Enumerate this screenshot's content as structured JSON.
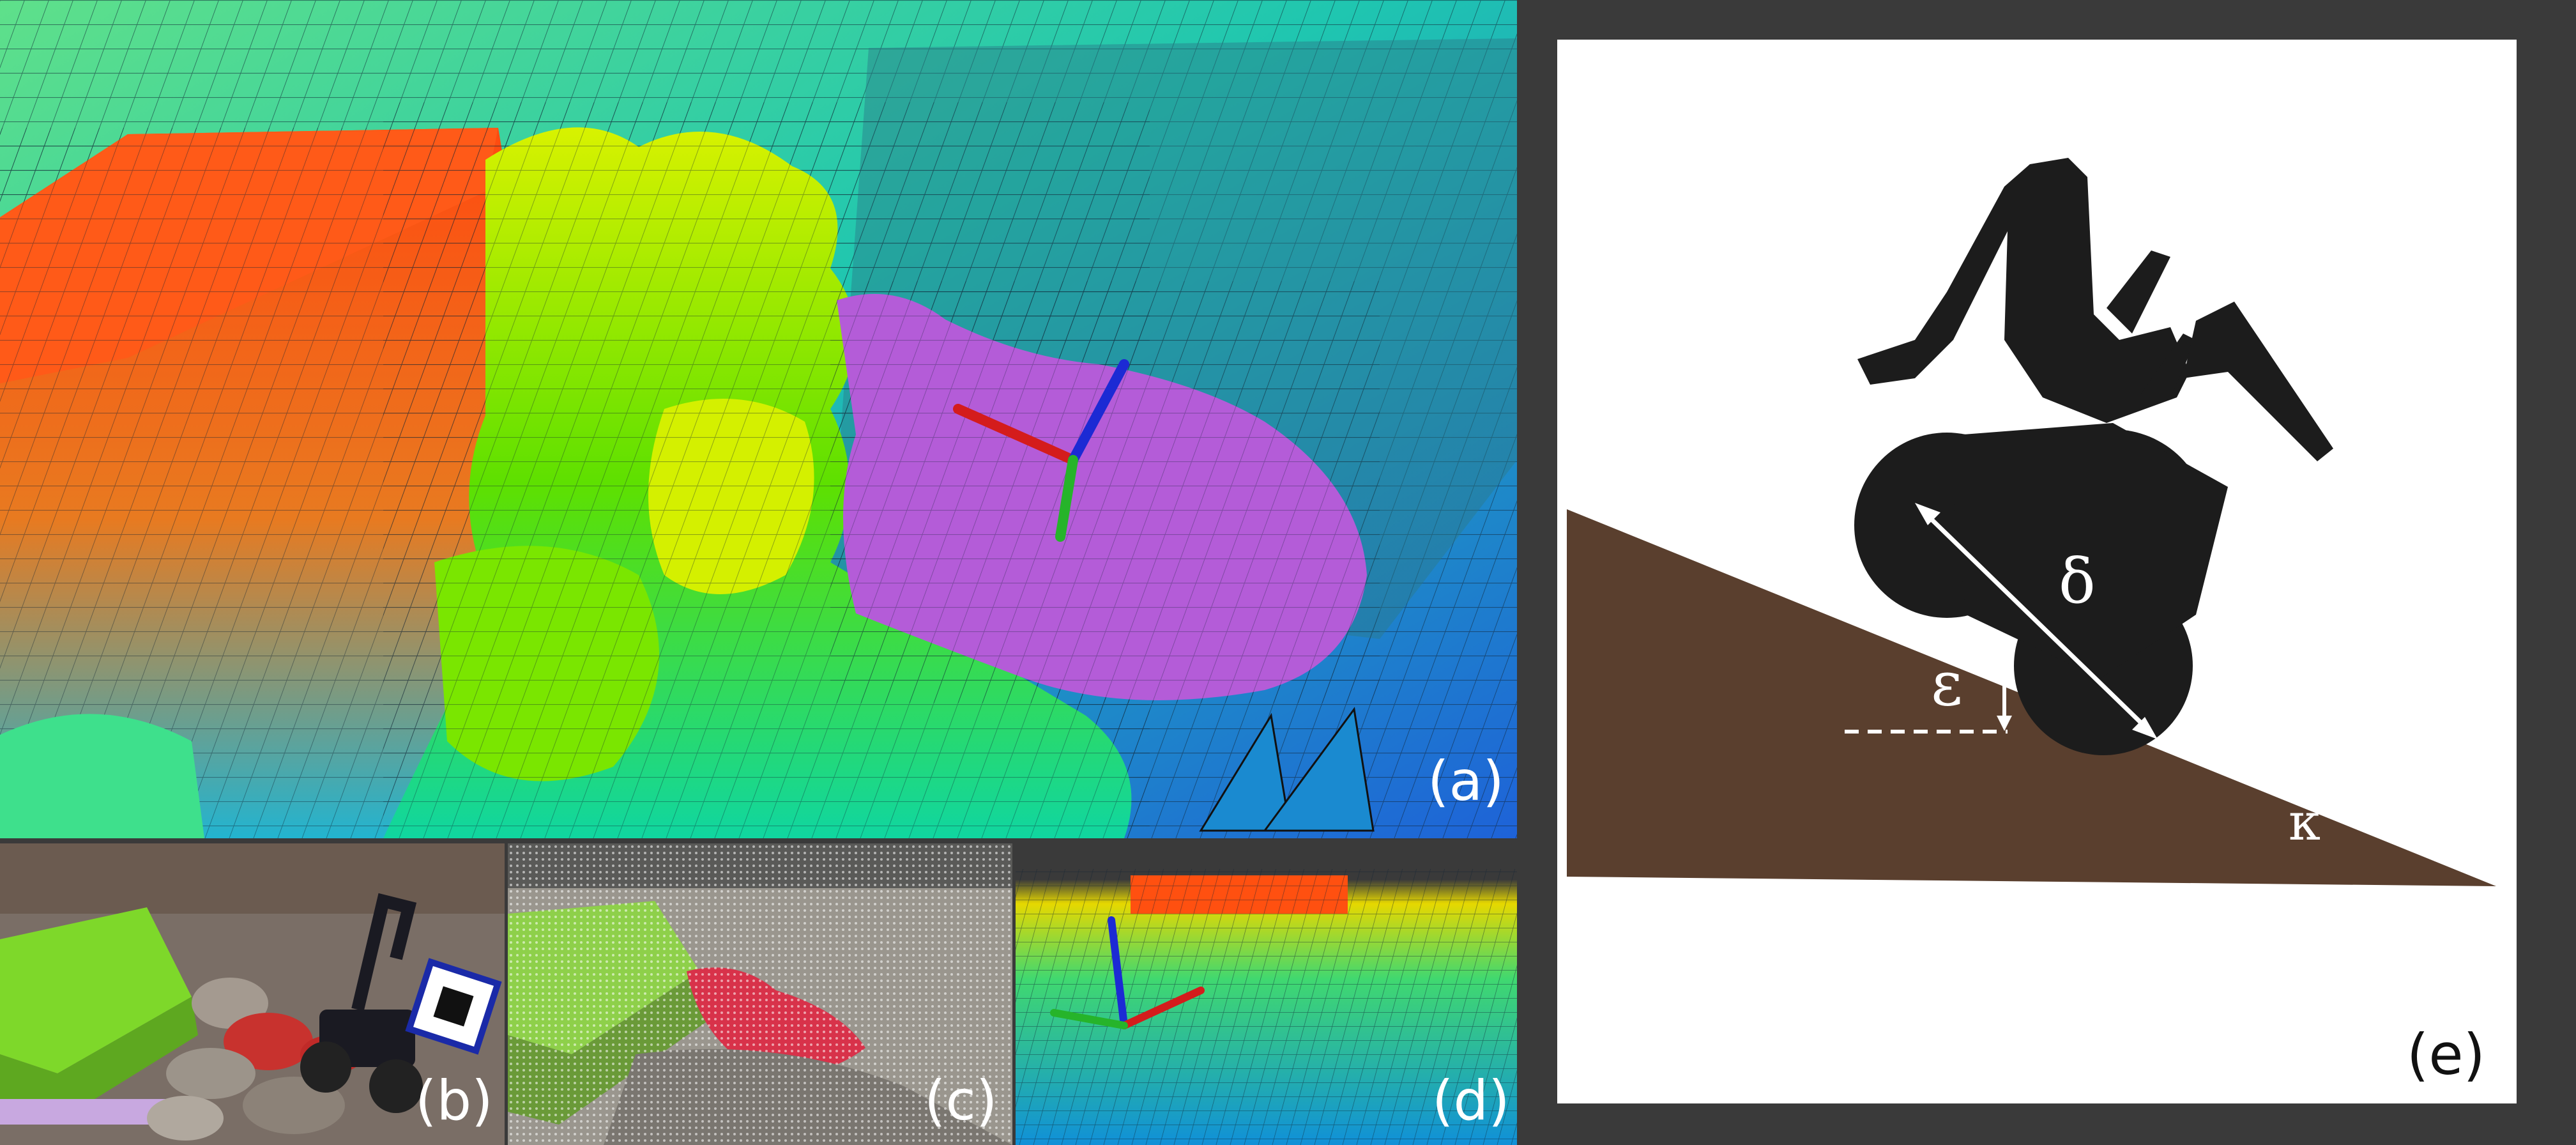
{
  "panels": {
    "a": {
      "label": "(a)"
    },
    "b": {
      "label": "(b)"
    },
    "c": {
      "label": "(c)"
    },
    "d": {
      "label": "(d)"
    },
    "e": {
      "label": "(e)"
    }
  },
  "diagram_symbols": {
    "delta": "δ",
    "epsilon": "ε",
    "kappa": "κ"
  },
  "colors": {
    "frame_background": "#3a3a3a",
    "terrain_slope": "#5a3f2e",
    "robot_silhouette": "#1c1c1c",
    "elevation_high": "#ff4a10",
    "elevation_mid": "#6ee600",
    "elevation_low": "#0fb4c8",
    "highlight_region": "#b45cd8"
  }
}
